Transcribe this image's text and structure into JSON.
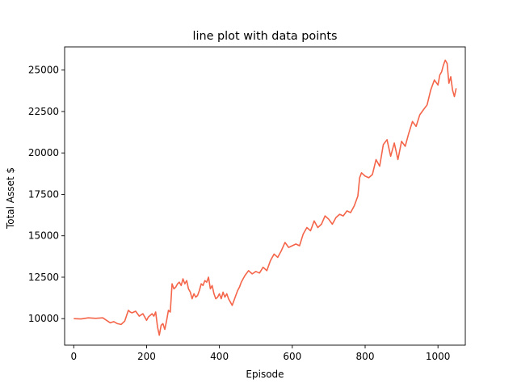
{
  "chart_data": {
    "type": "line",
    "title": "line plot with data points",
    "xlabel": "Episode",
    "ylabel": "Total Asset $",
    "xlim": [
      -25,
      1075
    ],
    "ylim": [
      8400,
      26400
    ],
    "xticks": [
      0,
      200,
      400,
      600,
      800,
      1000
    ],
    "yticks": [
      10000,
      12500,
      15000,
      17500,
      20000,
      22500,
      25000
    ],
    "grid": false,
    "line_color": "#f4654a",
    "series": [
      {
        "x": [
          0,
          20,
          40,
          60,
          80,
          90,
          100,
          110,
          120,
          130,
          140,
          150,
          155,
          160,
          170,
          180,
          190,
          200,
          205,
          210,
          215,
          220,
          225,
          230,
          235,
          240,
          245,
          250,
          255,
          260,
          265,
          270,
          275,
          280,
          285,
          290,
          295,
          300,
          305,
          310,
          315,
          320,
          325,
          330,
          335,
          340,
          345,
          350,
          355,
          360,
          365,
          370,
          375,
          380,
          385,
          390,
          395,
          400,
          405,
          410,
          415,
          420,
          425,
          430,
          435,
          440,
          445,
          450,
          455,
          460,
          465,
          470,
          480,
          490,
          500,
          510,
          520,
          530,
          540,
          550,
          560,
          570,
          580,
          590,
          600,
          610,
          620,
          630,
          640,
          650,
          660,
          670,
          680,
          690,
          700,
          710,
          720,
          730,
          740,
          750,
          760,
          770,
          780,
          785,
          790,
          800,
          810,
          820,
          830,
          840,
          850,
          860,
          870,
          880,
          890,
          900,
          910,
          920,
          930,
          940,
          950,
          960,
          970,
          980,
          990,
          1000,
          1005,
          1010,
          1015,
          1020,
          1025,
          1030,
          1035,
          1040,
          1045,
          1050
        ],
        "y": [
          10000,
          9980,
          10050,
          10020,
          10050,
          9900,
          9750,
          9820,
          9700,
          9650,
          9850,
          10500,
          10400,
          10350,
          10450,
          10150,
          10300,
          9900,
          10100,
          10200,
          10300,
          10150,
          10400,
          9500,
          9000,
          9600,
          9700,
          9350,
          9900,
          10500,
          10400,
          12100,
          11800,
          11900,
          12100,
          12200,
          12000,
          12400,
          12100,
          12300,
          11800,
          11600,
          11200,
          11500,
          11300,
          11400,
          11700,
          12100,
          12000,
          12300,
          12200,
          12500,
          11800,
          12000,
          11500,
          11200,
          11300,
          11500,
          11200,
          11600,
          11300,
          11500,
          11200,
          11000,
          10800,
          11100,
          11400,
          11700,
          11900,
          12200,
          12400,
          12600,
          12900,
          12700,
          12850,
          12750,
          13100,
          12900,
          13500,
          13900,
          13700,
          14100,
          14600,
          14300,
          14400,
          14500,
          14400,
          15100,
          15500,
          15300,
          15900,
          15500,
          15700,
          16200,
          16000,
          15700,
          16100,
          16300,
          16200,
          16500,
          16400,
          16800,
          17400,
          18500,
          18800,
          18600,
          18500,
          18700,
          19600,
          19200,
          20500,
          20800,
          19800,
          20600,
          19600,
          20700,
          20400,
          21200,
          21900,
          21600,
          22300,
          22600,
          22900,
          23800,
          24400,
          24100,
          24700,
          24900,
          25300,
          25600,
          25400,
          24200,
          24600,
          23800,
          23400,
          23900
        ]
      }
    ]
  }
}
